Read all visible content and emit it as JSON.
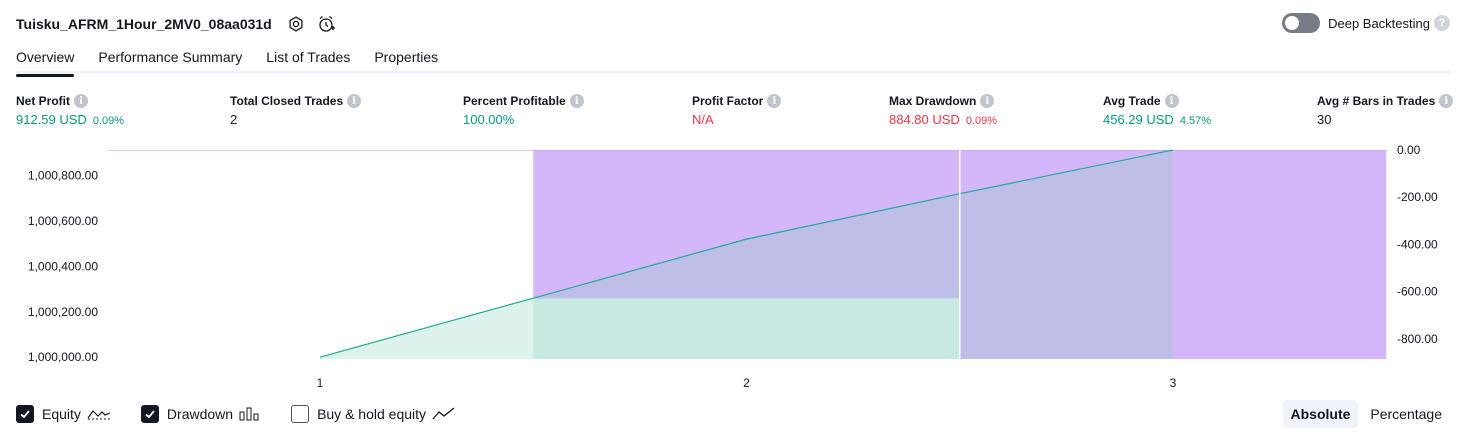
{
  "header": {
    "title": "Tuisku_AFRM_1Hour_2MV0_08aa031d",
    "icons": [
      "settings-icon",
      "alert-icon"
    ]
  },
  "deep_backtesting": {
    "label": "Deep Backtesting",
    "help": "?",
    "enabled": false
  },
  "tabs": [
    {
      "label": "Overview",
      "active": true
    },
    {
      "label": "Performance Summary",
      "active": false
    },
    {
      "label": "List of Trades",
      "active": false
    },
    {
      "label": "Properties",
      "active": false
    }
  ],
  "metrics": [
    {
      "label": "Net Profit",
      "value": "912.59 USD",
      "pct": "0.09%",
      "color": "#089981"
    },
    {
      "label": "Total Closed Trades",
      "value": "2",
      "pct": "",
      "color": "#131722"
    },
    {
      "label": "Percent Profitable",
      "value": "100.00%",
      "pct": "",
      "color": "#089981"
    },
    {
      "label": "Profit Factor",
      "value": "N/A",
      "pct": "",
      "color": "#f23645"
    },
    {
      "label": "Max Drawdown",
      "value": "884.80 USD",
      "pct": "0.09%",
      "color": "#f23645"
    },
    {
      "label": "Avg Trade",
      "value": "456.29 USD",
      "pct": "4.57%",
      "color": "#089981"
    },
    {
      "label": "Avg # Bars in Trades",
      "value": "30",
      "pct": "",
      "color": "#131722"
    }
  ],
  "chart_data": {
    "type": "area",
    "categories": [
      "1",
      "2",
      "3"
    ],
    "x": [
      1,
      2,
      3
    ],
    "series": [
      {
        "name": "Equity",
        "type": "line-area",
        "color": "#22ab94",
        "points": [
          [
            1,
            1000000
          ],
          [
            1.5,
            1000260
          ],
          [
            2,
            1000520
          ],
          [
            2.5,
            1000720
          ],
          [
            3,
            1000912.59
          ]
        ]
      },
      {
        "name": "Drawdown",
        "type": "bar",
        "color": "#c8a2f8",
        "bars": [
          [
            1.5,
            2.5,
            -630
          ],
          [
            2.5,
            3.0,
            -884.8
          ],
          [
            3.0,
            3.5,
            -884.8
          ]
        ]
      }
    ],
    "equity_fill_bar": [
      1.5,
      2.5,
      1000260
    ],
    "left_axis": {
      "ticks": [
        1000000,
        1000200,
        1000400,
        1000600,
        1000800
      ],
      "tick_labels": [
        "1,000,000.00",
        "1,000,200.00",
        "1,000,400.00",
        "1,000,600.00",
        "1,000,800.00"
      ],
      "range": [
        999992,
        1000912.59
      ]
    },
    "right_axis": {
      "ticks": [
        0,
        -200,
        -400,
        -600,
        -800
      ],
      "tick_labels": [
        "0.00",
        "-200.00",
        "-400.00",
        "-600.00",
        "-800.00"
      ],
      "range": [
        -884.8,
        0
      ]
    },
    "x_range": [
      1,
      3.5
    ],
    "grid": false
  },
  "legend": [
    {
      "label": "Equity",
      "checked": true,
      "icon": "equity-line-icon"
    },
    {
      "label": "Drawdown",
      "checked": true,
      "icon": "drawdown-bars-icon"
    },
    {
      "label": "Buy & hold equity",
      "checked": false,
      "icon": "buy-hold-line-icon"
    }
  ],
  "mode": {
    "options": [
      "Absolute",
      "Percentage"
    ],
    "active": "Absolute"
  }
}
